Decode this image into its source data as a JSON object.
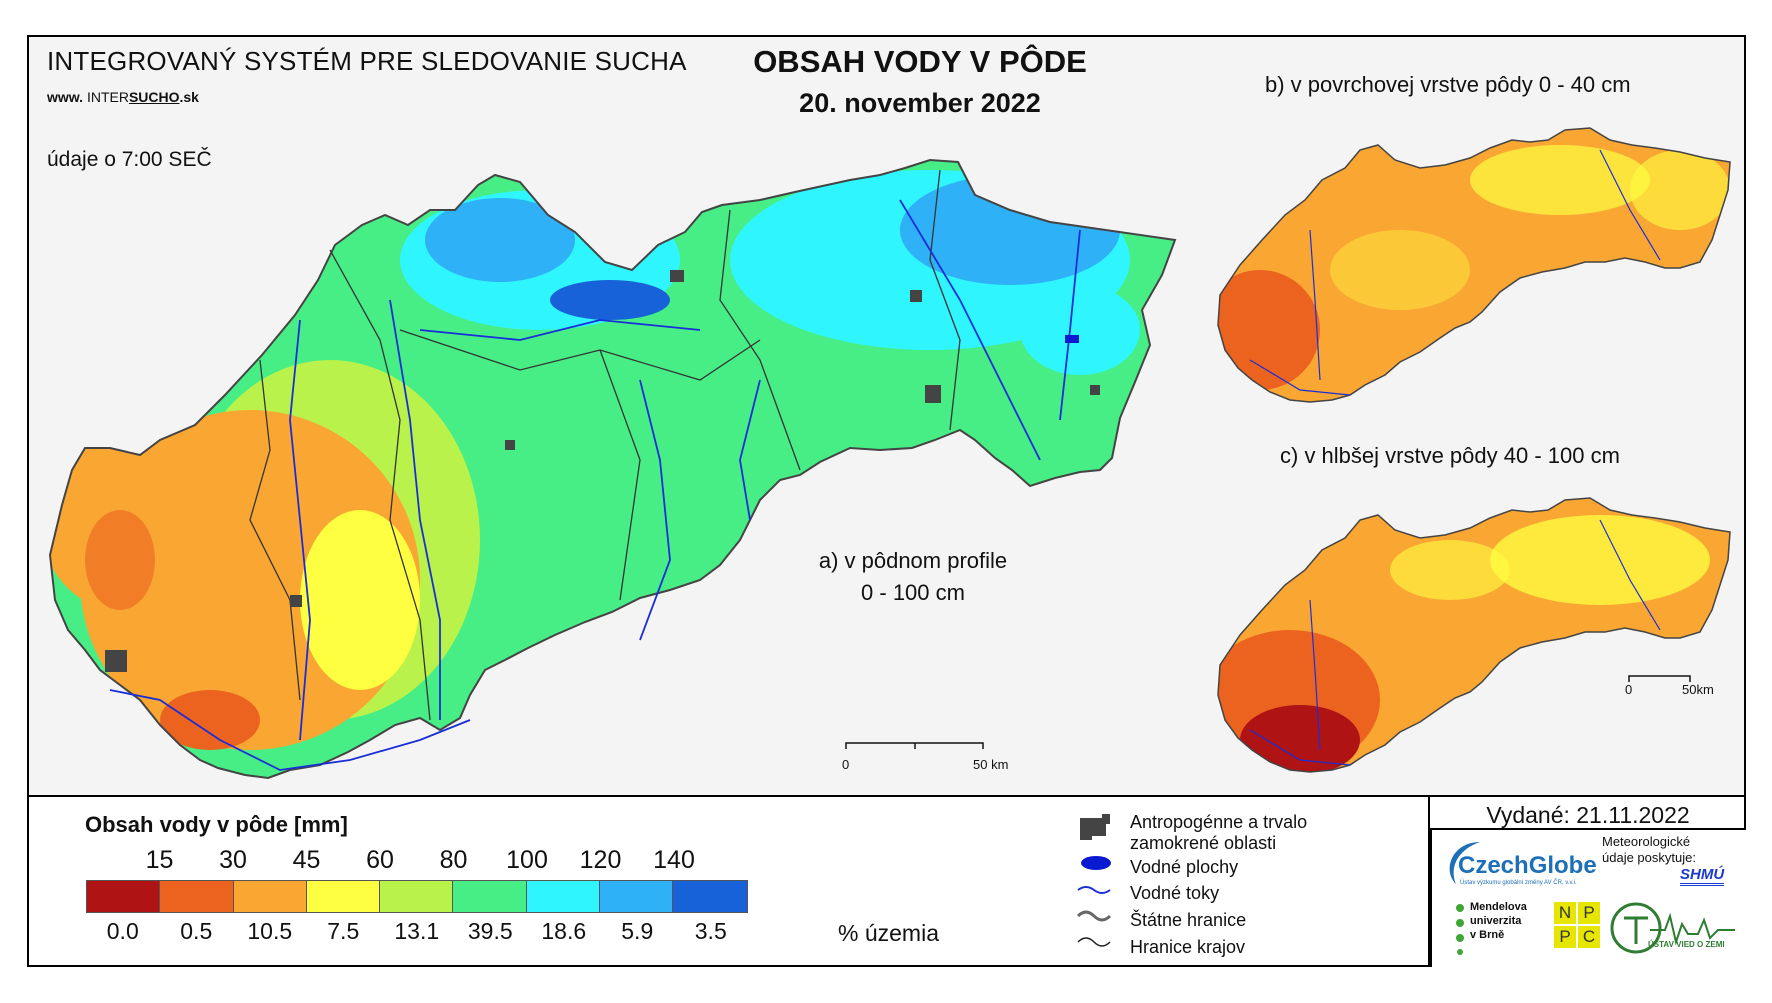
{
  "header": {
    "system_title": "INTEGROVANÝ SYSTÉM PRE SLEDOVANIE SUCHA",
    "url_prefix": "www.",
    "url_inter": "INTER",
    "url_sucho": "SUCHO",
    "url_suffix": ".sk",
    "time_note": "údaje o 7:00 SEČ",
    "main_title": "OBSAH VODY V PÔDE",
    "date": "20. november 2022"
  },
  "maps": {
    "a_caption_1": "a) v pôdnom profile",
    "a_caption_2": "0 - 100 cm",
    "b_caption": "b) v povrchovej vrstve pôdy 0 - 40 cm",
    "c_caption": "c) v hlbšej vrstve pôdy 40 - 100 cm",
    "scale_main_start": "0",
    "scale_main_end": "50 km",
    "scale_small_start": "0",
    "scale_small_end": "50km"
  },
  "legend": {
    "title": "Obsah vody v pôde  [mm]",
    "thresholds": [
      "15",
      "30",
      "45",
      "60",
      "80",
      "100",
      "120",
      "140"
    ],
    "classes": [
      {
        "color": "#b01313",
        "percent": "0.0"
      },
      {
        "color": "#ec6320",
        "percent": "0.5"
      },
      {
        "color": "#f9a633",
        "percent": "10.5"
      },
      {
        "color": "#ffff41",
        "percent": "7.5"
      },
      {
        "color": "#b8f24a",
        "percent": "13.1"
      },
      {
        "color": "#47ee86",
        "percent": "39.5"
      },
      {
        "color": "#2ff5ff",
        "percent": "18.6"
      },
      {
        "color": "#2eb1f6",
        "percent": "5.9"
      },
      {
        "color": "#1762d8",
        "percent": "3.5"
      }
    ],
    "percent_label": "% územia"
  },
  "symbols": {
    "urban": "Antropogénne a trvalo zamokrené oblasti",
    "water_bodies": "Vodné plochy",
    "rivers": "Vodné toky",
    "state_border": "Štátne hranice",
    "region_border": "Hranice krajov"
  },
  "issued": "Vydané: 21.11.2022",
  "logos": {
    "czechglobe": "CzechGlobe",
    "czechglobe_sub": "Ústav výzkumu globální změny AV ČR, v.v.i.",
    "meteo_note": "Meteorologické údaje poskytuje:",
    "shmu": "SHMÚ",
    "mendel_1": "Mendelova",
    "mendel_2": "univerzita",
    "mendel_3": "v Brně",
    "nppc": [
      "N",
      "P",
      "P",
      "C"
    ],
    "uvz": "ÚSTAV VIED O ZEMI"
  }
}
